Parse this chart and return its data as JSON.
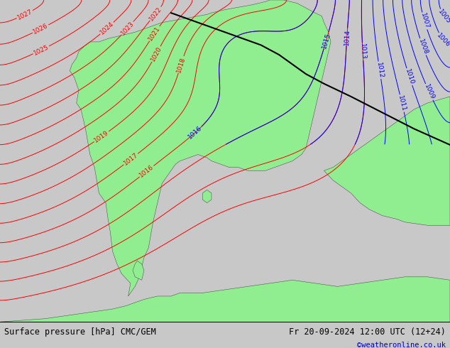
{
  "title_left": "Surface pressure [hPa] CMC/GEM",
  "title_right": "Fr 20-09-2024 12:00 UTC (12+24)",
  "credit": "©weatheronline.co.uk",
  "bg_color": "#c8c8c8",
  "land_color": "#90ee90",
  "land_edge": "#555555",
  "fig_width": 6.34,
  "fig_height": 4.9,
  "dpi": 100,
  "bottom_bar_color": "#e8e8e8",
  "title_color": "#000000",
  "credit_color": "#0000cc",
  "red_color": "#ff0000",
  "blue_color": "#0000ff",
  "black_color": "#000000"
}
